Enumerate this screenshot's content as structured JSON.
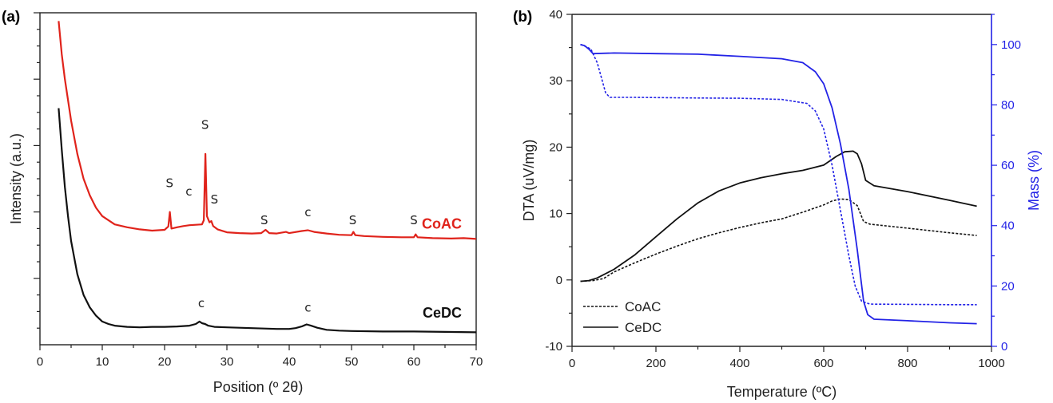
{
  "chart_data": [
    {
      "panel": "(a)",
      "type": "line",
      "xlabel": "Position (º 2θ)",
      "ylabel": "Intensity (a.u.)",
      "xlim": [
        0,
        70
      ],
      "xticks": [
        0,
        10,
        20,
        30,
        40,
        50,
        60,
        70
      ],
      "series": [
        {
          "name": "CoAC",
          "color": "#e0231b",
          "points": [
            [
              3,
              78
            ],
            [
              3.5,
              70
            ],
            [
              4,
              64
            ],
            [
              5,
              54
            ],
            [
              6,
              46
            ],
            [
              7,
              40
            ],
            [
              8,
              36
            ],
            [
              9,
              33
            ],
            [
              10,
              31
            ],
            [
              12,
              29
            ],
            [
              14,
              28.3
            ],
            [
              16,
              27.8
            ],
            [
              18,
              27.5
            ],
            [
              20,
              27.7
            ],
            [
              20.6,
              28.5
            ],
            [
              20.85,
              32
            ],
            [
              21.1,
              28
            ],
            [
              22,
              28.3
            ],
            [
              23,
              28.6
            ],
            [
              24,
              28.8
            ],
            [
              25,
              28.9
            ],
            [
              26,
              29
            ],
            [
              26.3,
              30
            ],
            [
              26.55,
              46
            ],
            [
              26.8,
              31
            ],
            [
              27.2,
              29.5
            ],
            [
              27.5,
              29.8
            ],
            [
              27.8,
              28.6
            ],
            [
              28.5,
              27.8
            ],
            [
              30,
              27.1
            ],
            [
              32,
              26.9
            ],
            [
              34,
              26.8
            ],
            [
              35.5,
              26.9
            ],
            [
              36.2,
              27.7
            ],
            [
              36.8,
              26.9
            ],
            [
              38,
              26.8
            ],
            [
              39.5,
              27.2
            ],
            [
              40,
              26.9
            ],
            [
              42,
              27.4
            ],
            [
              43,
              27.6
            ],
            [
              44,
              27.2
            ],
            [
              46,
              26.8
            ],
            [
              48,
              26.5
            ],
            [
              50,
              26.4
            ],
            [
              50.3,
              27.2
            ],
            [
              50.6,
              26.4
            ],
            [
              52,
              26.2
            ],
            [
              55,
              26
            ],
            [
              58,
              25.9
            ],
            [
              60,
              25.9
            ],
            [
              60.3,
              26.6
            ],
            [
              60.6,
              25.9
            ],
            [
              63,
              25.7
            ],
            [
              66,
              25.6
            ],
            [
              68,
              25.7
            ],
            [
              70,
              25.5
            ]
          ]
        },
        {
          "name": "CeDC",
          "color": "#111111",
          "points": [
            [
              3,
              57
            ],
            [
              3.5,
              47
            ],
            [
              4,
              38
            ],
            [
              4.5,
              31
            ],
            [
              5,
              25
            ],
            [
              6,
              17
            ],
            [
              7,
              12
            ],
            [
              8,
              9
            ],
            [
              9,
              7
            ],
            [
              10,
              5.6
            ],
            [
              11,
              5
            ],
            [
              12,
              4.6
            ],
            [
              14,
              4.3
            ],
            [
              16,
              4.2
            ],
            [
              18,
              4.3
            ],
            [
              20,
              4.3
            ],
            [
              22,
              4.4
            ],
            [
              24,
              4.6
            ],
            [
              25,
              5
            ],
            [
              25.6,
              5.6
            ],
            [
              26,
              5.2
            ],
            [
              26.5,
              5
            ],
            [
              27,
              4.6
            ],
            [
              28,
              4.3
            ],
            [
              30,
              4.2
            ],
            [
              32,
              4.1
            ],
            [
              34,
              4
            ],
            [
              36,
              3.9
            ],
            [
              38,
              3.8
            ],
            [
              40,
              3.8
            ],
            [
              41,
              4
            ],
            [
              42,
              4.4
            ],
            [
              42.8,
              4.9
            ],
            [
              43.5,
              4.6
            ],
            [
              44.5,
              4.1
            ],
            [
              46,
              3.6
            ],
            [
              48,
              3.4
            ],
            [
              50,
              3.3
            ],
            [
              55,
              3.2
            ],
            [
              60,
              3.2
            ],
            [
              65,
              3.1
            ],
            [
              70,
              3
            ]
          ]
        }
      ],
      "annotations": [
        {
          "text": "S",
          "x": 20.8,
          "y": 38
        },
        {
          "text": "c",
          "x": 23.9,
          "y": 36
        },
        {
          "text": "S",
          "x": 26.5,
          "y": 52
        },
        {
          "text": "S",
          "x": 28,
          "y": 34
        },
        {
          "text": "S",
          "x": 36,
          "y": 29
        },
        {
          "text": "c",
          "x": 43,
          "y": 31
        },
        {
          "text": "S",
          "x": 50.2,
          "y": 29
        },
        {
          "text": "S",
          "x": 60,
          "y": 29
        },
        {
          "text": "c",
          "x": 25.9,
          "y": 9
        },
        {
          "text": "c",
          "x": 43,
          "y": 8
        }
      ],
      "series_labels": [
        {
          "text": "CoAC",
          "color": "#e0231b"
        },
        {
          "text": "CeDC",
          "color": "#111111"
        }
      ]
    },
    {
      "panel": "(b)",
      "type": "line",
      "xlabel": "Temperature (ºC)",
      "ylabel": "DTA (uV/mg)",
      "y2label": "Mass (%)",
      "xlim": [
        0,
        1000
      ],
      "ylim": [
        -10,
        40
      ],
      "y2lim": [
        0,
        110
      ],
      "xticks": [
        0,
        200,
        400,
        600,
        800,
        1000
      ],
      "yticks": [
        -10,
        0,
        10,
        20,
        30,
        40
      ],
      "y2ticks": [
        0,
        20,
        40,
        60,
        80,
        100
      ],
      "legend": {
        "position": "bottom-left",
        "entries": [
          {
            "name": "CoAC",
            "dash": "dotted"
          },
          {
            "name": "CeDC",
            "dash": "solid"
          }
        ]
      },
      "series": [
        {
          "name": "CoAC",
          "quantity": "DTA",
          "axis": "left",
          "color": "#111111",
          "dash": "dotted",
          "points": [
            [
              20,
              -0.2
            ],
            [
              50,
              -0.1
            ],
            [
              75,
              0.2
            ],
            [
              100,
              1.2
            ],
            [
              150,
              2.6
            ],
            [
              200,
              3.9
            ],
            [
              250,
              5.1
            ],
            [
              300,
              6.2
            ],
            [
              350,
              7.1
            ],
            [
              400,
              7.9
            ],
            [
              450,
              8.6
            ],
            [
              500,
              9.2
            ],
            [
              550,
              10.2
            ],
            [
              600,
              11.3
            ],
            [
              620,
              11.9
            ],
            [
              640,
              12.2
            ],
            [
              660,
              12.1
            ],
            [
              680,
              11.2
            ],
            [
              695,
              8.8
            ],
            [
              710,
              8.4
            ],
            [
              800,
              7.8
            ],
            [
              900,
              7.1
            ],
            [
              965,
              6.7
            ]
          ]
        },
        {
          "name": "CeDC",
          "quantity": "DTA",
          "axis": "left",
          "color": "#111111",
          "dash": "solid",
          "points": [
            [
              20,
              -0.2
            ],
            [
              40,
              -0.1
            ],
            [
              60,
              0.3
            ],
            [
              100,
              1.6
            ],
            [
              150,
              3.8
            ],
            [
              200,
              6.5
            ],
            [
              250,
              9.2
            ],
            [
              300,
              11.6
            ],
            [
              350,
              13.4
            ],
            [
              400,
              14.6
            ],
            [
              450,
              15.4
            ],
            [
              500,
              16
            ],
            [
              550,
              16.5
            ],
            [
              600,
              17.3
            ],
            [
              630,
              18.6
            ],
            [
              650,
              19.3
            ],
            [
              670,
              19.4
            ],
            [
              680,
              19
            ],
            [
              690,
              17.5
            ],
            [
              700,
              15
            ],
            [
              720,
              14.2
            ],
            [
              800,
              13.3
            ],
            [
              900,
              12
            ],
            [
              965,
              11.1
            ]
          ]
        },
        {
          "name": "CoAC",
          "quantity": "Mass",
          "axis": "right",
          "color": "#2323e6",
          "dash": "dotted",
          "points": [
            [
              20,
              100
            ],
            [
              30,
              99.5
            ],
            [
              45,
              98.5
            ],
            [
              60,
              94
            ],
            [
              70,
              89
            ],
            [
              80,
              84
            ],
            [
              90,
              82.5
            ],
            [
              150,
              82.5
            ],
            [
              300,
              82.3
            ],
            [
              400,
              82.2
            ],
            [
              500,
              81.8
            ],
            [
              560,
              80.5
            ],
            [
              580,
              78
            ],
            [
              600,
              72
            ],
            [
              620,
              60
            ],
            [
              640,
              45
            ],
            [
              660,
              30
            ],
            [
              675,
              20
            ],
            [
              690,
              15
            ],
            [
              710,
              14
            ],
            [
              800,
              13.9
            ],
            [
              900,
              13.8
            ],
            [
              965,
              13.8
            ]
          ]
        },
        {
          "name": "CeDC",
          "quantity": "Mass",
          "axis": "right",
          "color": "#2323e6",
          "dash": "solid",
          "points": [
            [
              20,
              100
            ],
            [
              30,
              99.6
            ],
            [
              40,
              98.5
            ],
            [
              50,
              97
            ],
            [
              100,
              97.2
            ],
            [
              200,
              97
            ],
            [
              300,
              96.8
            ],
            [
              400,
              96.1
            ],
            [
              500,
              95.3
            ],
            [
              550,
              94
            ],
            [
              580,
              91
            ],
            [
              600,
              87
            ],
            [
              620,
              79
            ],
            [
              640,
              67
            ],
            [
              660,
              52
            ],
            [
              680,
              32
            ],
            [
              695,
              15
            ],
            [
              705,
              10.5
            ],
            [
              720,
              9
            ],
            [
              800,
              8.5
            ],
            [
              900,
              7.8
            ],
            [
              965,
              7.5
            ]
          ]
        }
      ]
    }
  ]
}
